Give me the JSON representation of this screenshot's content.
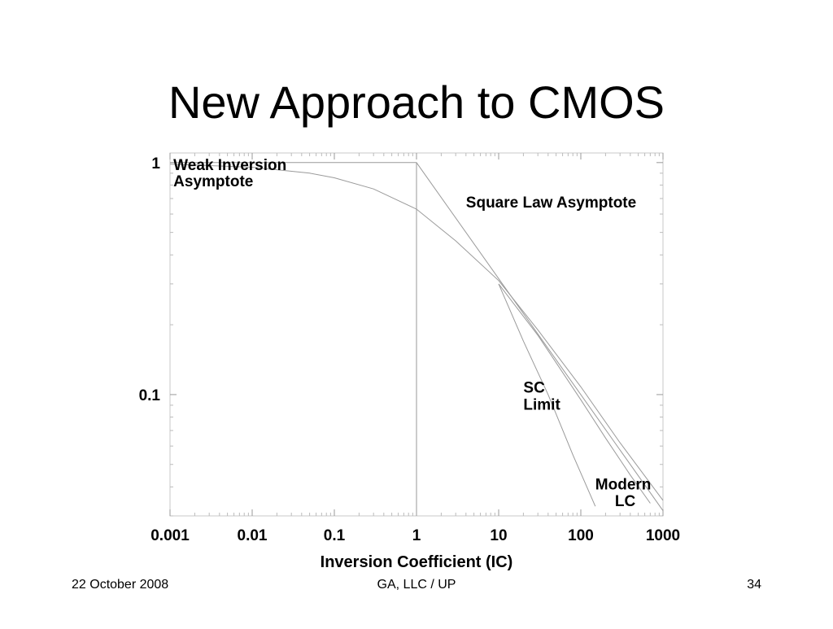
{
  "slide": {
    "title": "New Approach to CMOS",
    "footer_left": "22 October 2008",
    "footer_center": "GA, LLC / UP",
    "footer_right": "34"
  },
  "chart_data": {
    "type": "line",
    "xlabel": "Inversion Coefficient (IC)",
    "ylabel": "",
    "x_scale": "log",
    "y_scale": "log",
    "xlim": [
      0.001,
      1000
    ],
    "ylim": [
      0.03,
      1.1
    ],
    "x_ticks": [
      {
        "value": 0.001,
        "label": "0.001"
      },
      {
        "value": 0.01,
        "label": "0.01"
      },
      {
        "value": 0.1,
        "label": "0.1"
      },
      {
        "value": 1,
        "label": "1"
      },
      {
        "value": 10,
        "label": "10"
      },
      {
        "value": 100,
        "label": "100"
      },
      {
        "value": 1000,
        "label": "1000"
      }
    ],
    "y_ticks": [
      {
        "value": 1,
        "label": "1"
      },
      {
        "value": 0.1,
        "label": "0.1"
      }
    ],
    "grid": false,
    "series": [
      {
        "name": "Weak Inversion Asymptote",
        "color": "#9a9a9a",
        "x": [
          0.001,
          1,
          1
        ],
        "y": [
          1,
          1,
          0.03
        ]
      },
      {
        "name": "Square Law Asymptote",
        "color": "#9a9a9a",
        "x": [
          1,
          1000
        ],
        "y": [
          1,
          0.0316
        ]
      },
      {
        "name": "",
        "color": "#9a9a9a",
        "x": [
          0.001,
          0.01,
          0.05,
          0.1,
          0.3,
          1,
          3,
          10,
          30,
          100,
          300,
          1000
        ],
        "y": [
          0.985,
          0.955,
          0.9,
          0.86,
          0.77,
          0.63,
          0.46,
          0.31,
          0.19,
          0.108,
          0.062,
          0.035
        ]
      },
      {
        "name": "SC Limit",
        "color": "#9a9a9a",
        "x": [
          10,
          20,
          40,
          80,
          150
        ],
        "y": [
          0.3,
          0.17,
          0.1,
          0.055,
          0.033
        ]
      },
      {
        "name": "Modern LC",
        "color": "#9a9a9a",
        "x": [
          10,
          30,
          100,
          200,
          400,
          700
        ],
        "y": [
          0.3,
          0.18,
          0.095,
          0.065,
          0.045,
          0.034
        ]
      }
    ],
    "annotations": [
      {
        "id": "wi1",
        "text": "Weak Inversion",
        "x": 0.0011,
        "y": 0.93
      },
      {
        "id": "wi2",
        "text": "Asymptote",
        "x": 0.0011,
        "y": 0.79
      },
      {
        "id": "sq",
        "text": "Square Law Asymptote",
        "x": 4,
        "y": 0.64
      },
      {
        "id": "sc1",
        "text": "SC",
        "x": 20,
        "y": 0.102
      },
      {
        "id": "sc2",
        "text": "Limit",
        "x": 20,
        "y": 0.086
      },
      {
        "id": "m1",
        "text": "Modern",
        "x": 150,
        "y": 0.039
      },
      {
        "id": "m2",
        "text": "LC",
        "x": 260,
        "y": 0.033
      }
    ]
  }
}
